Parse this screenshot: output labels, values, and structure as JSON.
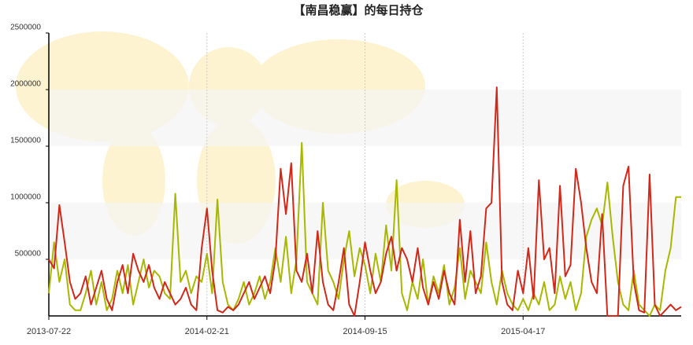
{
  "chart_data": {
    "type": "line",
    "title": "【南昌稳赢】的每日持仓",
    "categories": [
      "2013-07-22",
      null,
      null,
      null,
      null,
      null,
      null,
      null,
      null,
      null,
      null,
      null,
      null,
      null,
      null,
      null,
      null,
      null,
      null,
      null,
      null,
      null,
      null,
      null,
      null,
      null,
      null,
      null,
      null,
      null,
      "2014-02-21",
      null,
      null,
      null,
      null,
      null,
      null,
      null,
      null,
      null,
      null,
      null,
      null,
      null,
      null,
      null,
      null,
      null,
      null,
      null,
      null,
      null,
      null,
      null,
      null,
      null,
      null,
      null,
      null,
      null,
      "2014-09-15",
      null,
      null,
      null,
      null,
      null,
      null,
      null,
      null,
      null,
      null,
      null,
      null,
      null,
      null,
      null,
      null,
      null,
      null,
      null,
      null,
      null,
      null,
      null,
      null,
      null,
      null,
      null,
      null,
      null,
      "2015-04-17",
      null,
      null,
      null,
      null,
      null,
      null,
      null,
      null,
      null,
      null,
      null,
      null,
      null,
      null,
      null,
      null,
      null,
      null,
      null,
      null,
      null,
      null,
      null,
      null,
      null,
      null,
      null,
      null,
      null,
      null
    ],
    "series": [
      {
        "color": "#d2281a",
        "values": [
          500000,
          420000,
          980000,
          650000,
          300000,
          150000,
          200000,
          350000,
          100000,
          250000,
          400000,
          150000,
          50000,
          300000,
          450000,
          200000,
          550000,
          400000,
          300000,
          450000,
          250000,
          150000,
          300000,
          200000,
          100000,
          150000,
          250000,
          100000,
          50000,
          600000,
          950000,
          400000,
          50000,
          30000,
          80000,
          50000,
          100000,
          200000,
          300000,
          150000,
          250000,
          350000,
          200000,
          500000,
          1300000,
          900000,
          1350000,
          400000,
          300000,
          550000,
          200000,
          750000,
          300000,
          100000,
          50000,
          300000,
          600000,
          100000,
          0,
          300000,
          650000,
          400000,
          200000,
          300000,
          550000,
          700000,
          400000,
          600000,
          500000,
          300000,
          600000,
          250000,
          100000,
          300000,
          150000,
          400000,
          200000,
          100000,
          850000,
          300000,
          750000,
          200000,
          350000,
          950000,
          1000000,
          2020000,
          300000,
          100000,
          50000,
          400000,
          200000,
          600000,
          150000,
          1200000,
          500000,
          600000,
          200000,
          1150000,
          350000,
          450000,
          1300000,
          1000000,
          600000,
          300000,
          200000,
          900000,
          0,
          0,
          0,
          1150000,
          1320000,
          300000,
          50000,
          30000,
          1250000,
          100000,
          0,
          50000,
          100000,
          50000,
          80000
        ]
      },
      {
        "color": "#a8b800",
        "values": [
          200000,
          650000,
          300000,
          500000,
          100000,
          50000,
          50000,
          200000,
          400000,
          100000,
          300000,
          50000,
          150000,
          400000,
          200000,
          450000,
          100000,
          300000,
          500000,
          250000,
          400000,
          350000,
          200000,
          150000,
          1080000,
          300000,
          400000,
          200000,
          350000,
          300000,
          550000,
          200000,
          1030000,
          300000,
          100000,
          50000,
          150000,
          300000,
          100000,
          200000,
          350000,
          150000,
          300000,
          600000,
          300000,
          700000,
          200000,
          500000,
          1530000,
          300000,
          200000,
          100000,
          1000000,
          400000,
          300000,
          150000,
          500000,
          750000,
          350000,
          600000,
          450000,
          200000,
          550000,
          300000,
          800000,
          400000,
          1200000,
          200000,
          50000,
          300000,
          150000,
          500000,
          100000,
          350000,
          200000,
          450000,
          100000,
          250000,
          600000,
          150000,
          400000,
          300000,
          200000,
          650000,
          300000,
          100000,
          400000,
          200000,
          100000,
          50000,
          150000,
          50000,
          200000,
          100000,
          300000,
          50000,
          100000,
          350000,
          150000,
          300000,
          50000,
          200000,
          700000,
          850000,
          950000,
          800000,
          1180000,
          700000,
          300000,
          100000,
          50000,
          400000,
          100000,
          50000,
          0,
          100000,
          50000,
          400000,
          600000,
          1050000,
          1050000
        ]
      }
    ],
    "ylim": [
      0,
      2500000
    ],
    "yticks": [
      500000,
      1000000,
      1500000,
      2000000,
      2500000
    ]
  }
}
